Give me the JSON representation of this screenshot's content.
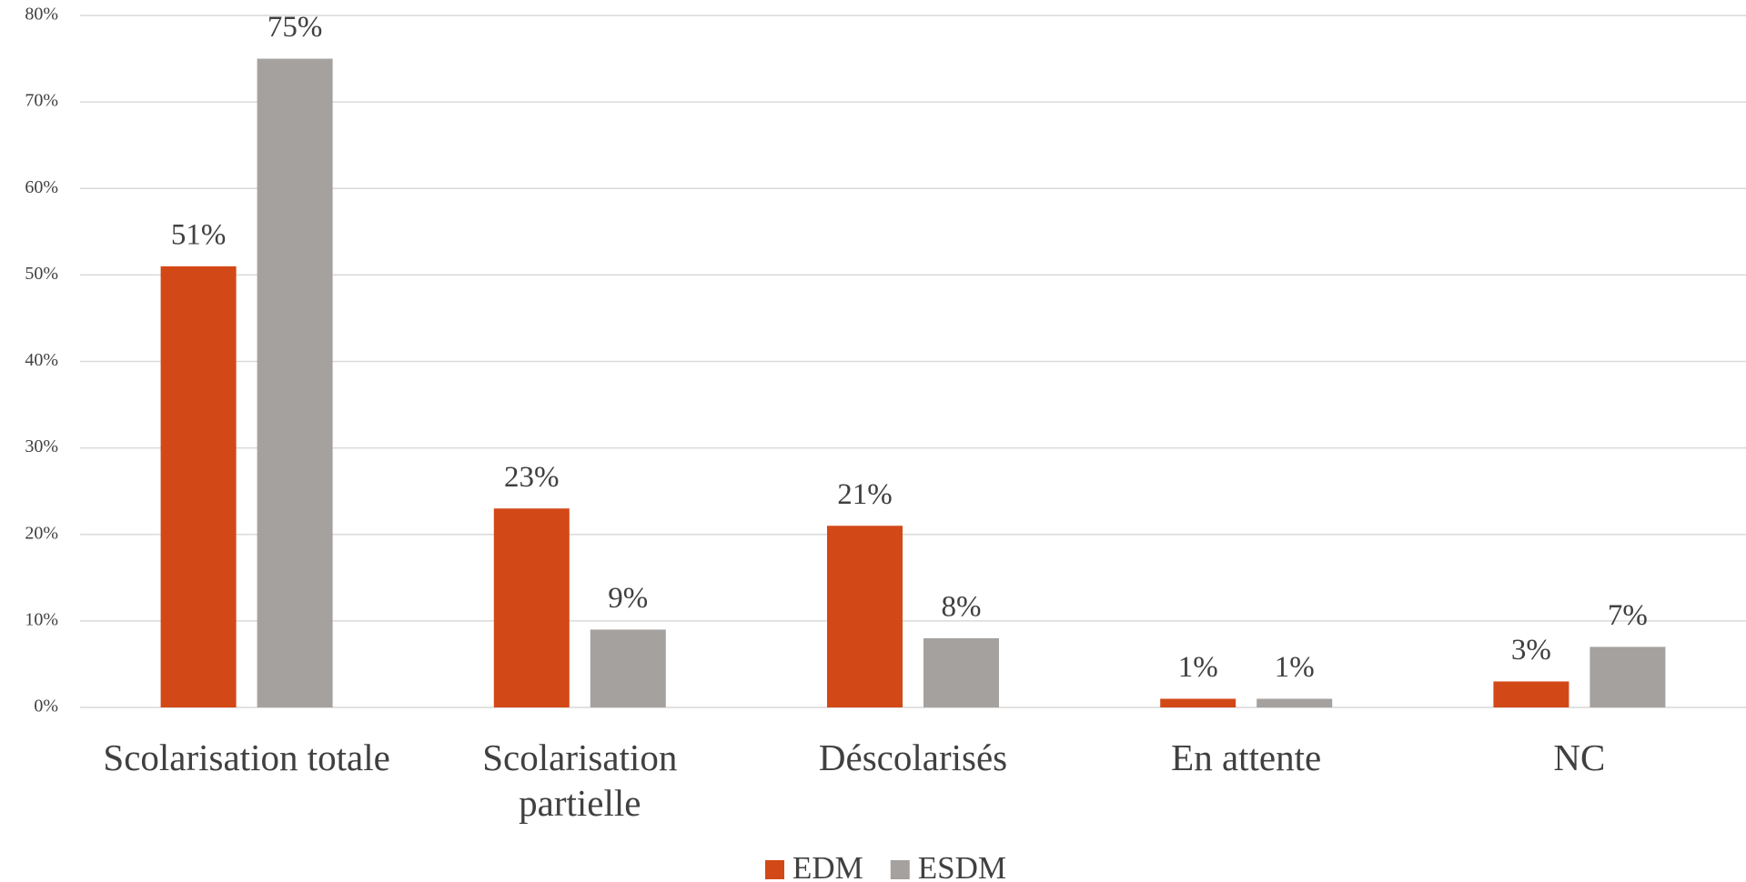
{
  "chart_data": {
    "type": "bar",
    "categories": [
      "Scolarisation totale",
      "Scolarisation partielle",
      "Déscolarisés",
      "En attente",
      "NC"
    ],
    "series": [
      {
        "name": "EDM",
        "color": "#d34817",
        "values": [
          51,
          23,
          21,
          1,
          3
        ],
        "value_labels": [
          "51%",
          "23%",
          "21%",
          "1%",
          "3%"
        ]
      },
      {
        "name": "ESDM",
        "color": "#a5a19f",
        "values": [
          75,
          9,
          8,
          1,
          7
        ],
        "value_labels": [
          "75%",
          "9%",
          "8%",
          "1%",
          "7%"
        ]
      }
    ],
    "ylim": [
      0,
      80
    ],
    "yticks": [
      {
        "value": 0,
        "label": "0%"
      },
      {
        "value": 10,
        "label": "10%"
      },
      {
        "value": 20,
        "label": "20%"
      },
      {
        "value": 30,
        "label": "30%"
      },
      {
        "value": 40,
        "label": "40%"
      },
      {
        "value": 50,
        "label": "50%"
      },
      {
        "value": 60,
        "label": "60%"
      },
      {
        "value": 70,
        "label": "70%"
      },
      {
        "value": 80,
        "label": "80%"
      }
    ],
    "grid": true,
    "legend": "bottom"
  }
}
